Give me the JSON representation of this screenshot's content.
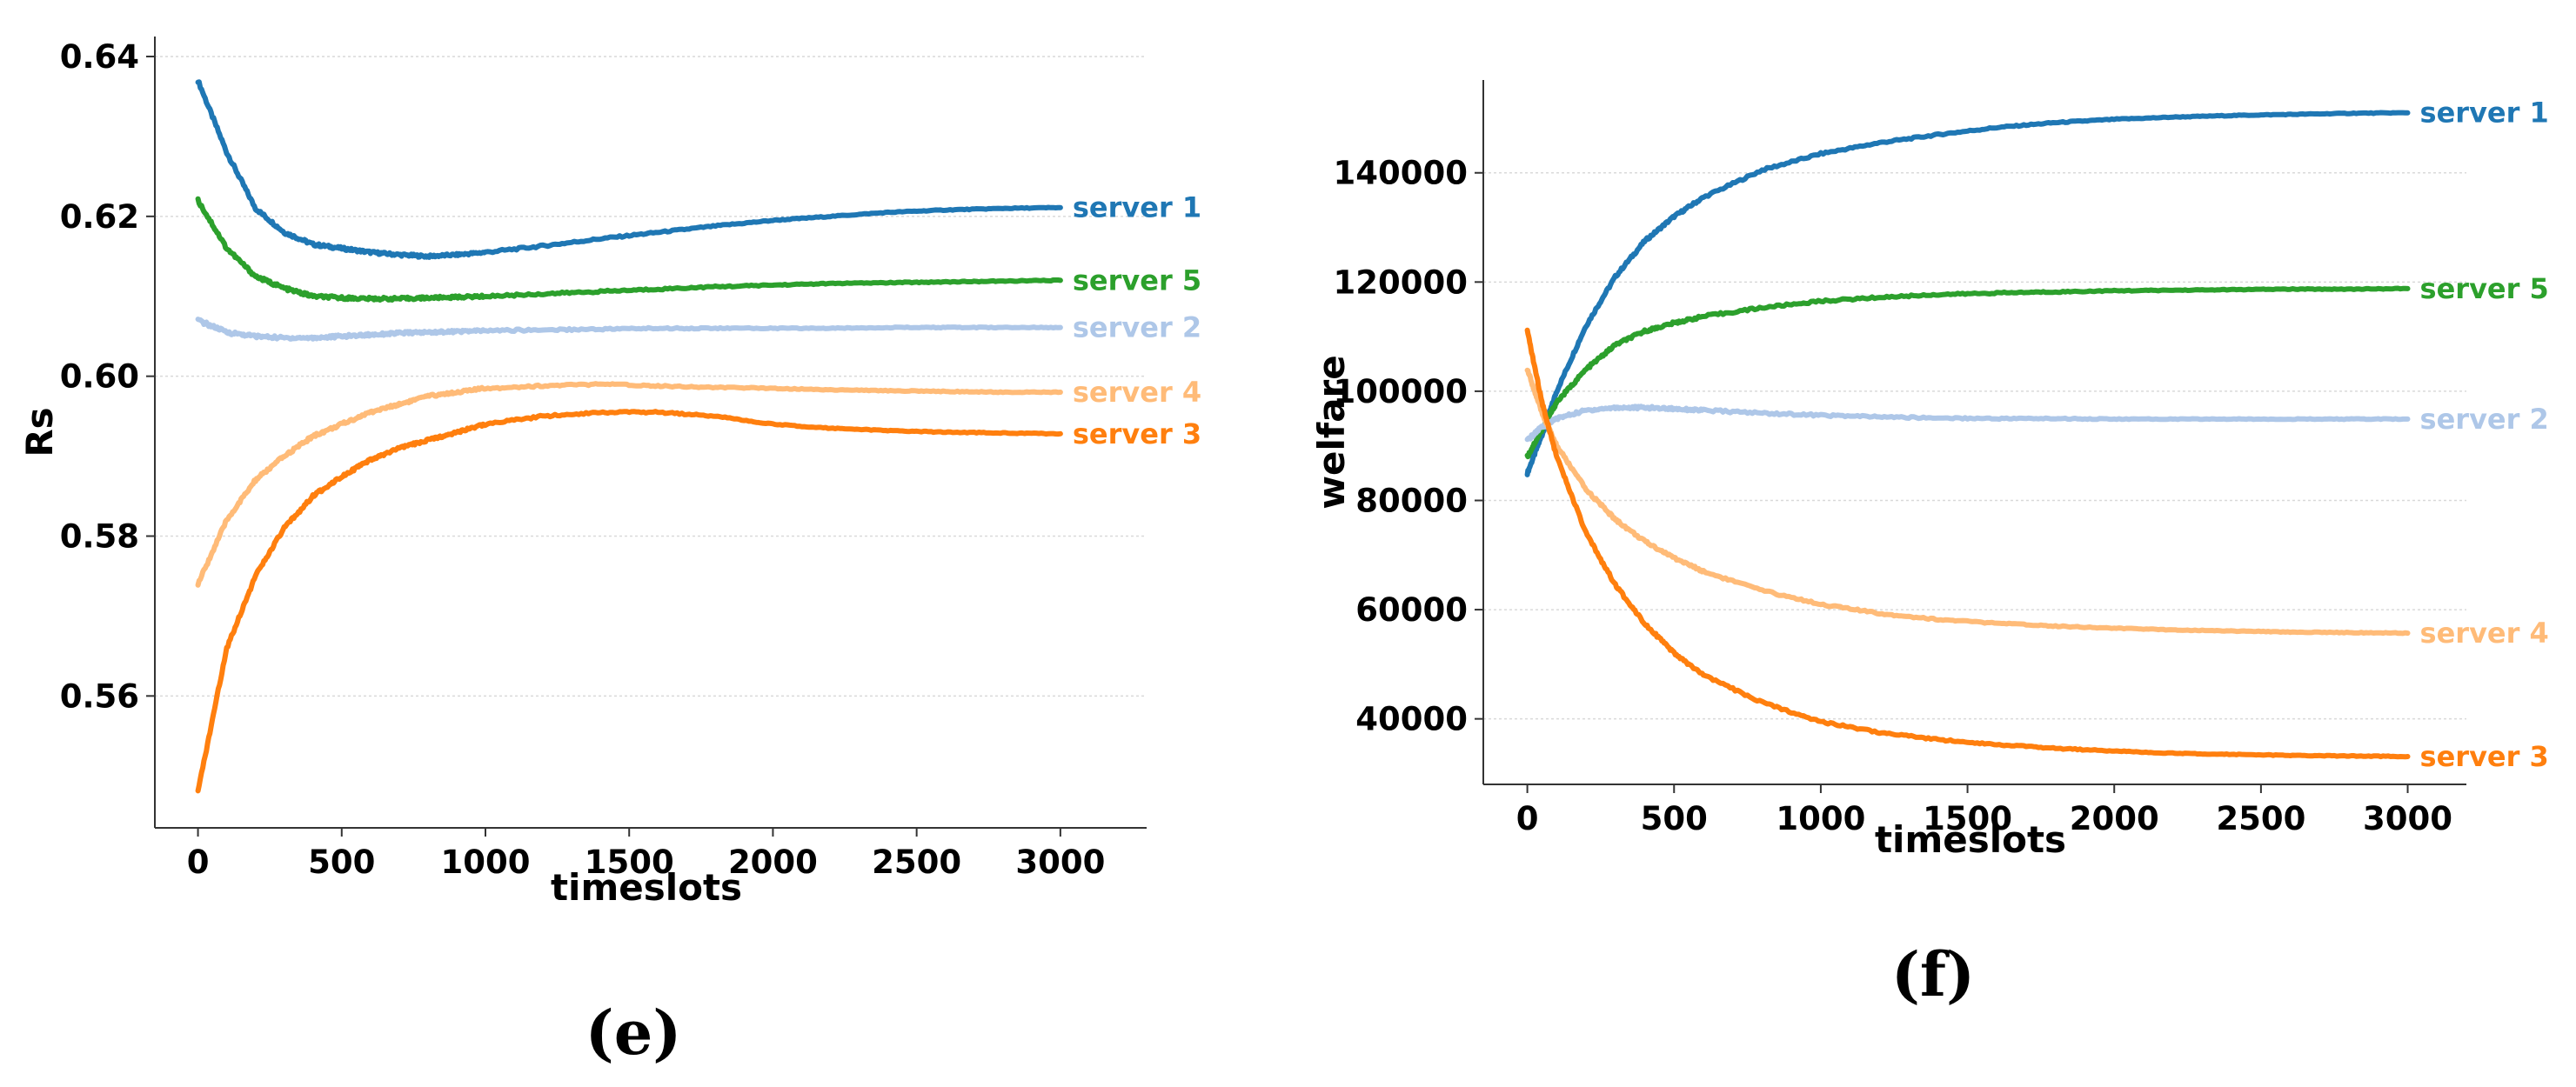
{
  "chart_data": [
    {
      "id": "e",
      "type": "line",
      "caption": "(e)",
      "title": "",
      "xlabel": "timeslots",
      "ylabel": "Rs",
      "xlim": [
        -150,
        3300
      ],
      "ylim": [
        0.5435,
        0.6425
      ],
      "xticks": [
        0,
        500,
        1000,
        1500,
        2000,
        2500,
        3000
      ],
      "xtick_labels": [
        "0",
        "500",
        "1000",
        "1500",
        "2000",
        "2500",
        "3000"
      ],
      "yticks": [
        0.56,
        0.58,
        0.6,
        0.62,
        0.64
      ],
      "ytick_labels": [
        "0.56",
        "0.58",
        "0.60",
        "0.62",
        "0.64"
      ],
      "grid": "horizontal",
      "x": [
        0,
        100,
        200,
        300,
        400,
        500,
        600,
        700,
        800,
        900,
        1000,
        1200,
        1400,
        1600,
        1800,
        2000,
        2200,
        2400,
        2600,
        2800,
        3000
      ],
      "series": [
        {
          "name": "server 1",
          "label": "server 1",
          "color": "#1f77b4",
          "values": [
            0.637,
            0.628,
            0.621,
            0.618,
            0.6165,
            0.616,
            0.6155,
            0.6152,
            0.615,
            0.6152,
            0.6155,
            0.6163,
            0.6172,
            0.618,
            0.6188,
            0.6195,
            0.62,
            0.6205,
            0.6208,
            0.621,
            0.6211
          ]
        },
        {
          "name": "server 5",
          "label": "server 5",
          "color": "#2ca02c",
          "values": [
            0.622,
            0.616,
            0.6125,
            0.611,
            0.61,
            0.6098,
            0.6097,
            0.6097,
            0.6098,
            0.6099,
            0.61,
            0.6103,
            0.6106,
            0.6109,
            0.6112,
            0.6114,
            0.6116,
            0.6117,
            0.6118,
            0.6119,
            0.612
          ]
        },
        {
          "name": "server 2",
          "label": "server 2",
          "color": "#aec7e8",
          "values": [
            0.607,
            0.6055,
            0.605,
            0.6048,
            0.6048,
            0.605,
            0.6052,
            0.6054,
            0.6055,
            0.6056,
            0.6057,
            0.6058,
            0.6059,
            0.606,
            0.606,
            0.606,
            0.606,
            0.6061,
            0.6061,
            0.6061,
            0.6061
          ]
        },
        {
          "name": "server 4",
          "label": "server 4",
          "color": "#ffbb78",
          "values": [
            0.574,
            0.582,
            0.587,
            0.59,
            0.5925,
            0.594,
            0.5955,
            0.5965,
            0.5975,
            0.598,
            0.5985,
            0.5988,
            0.599,
            0.5988,
            0.5986,
            0.5985,
            0.5983,
            0.5982,
            0.5981,
            0.598,
            0.598
          ]
        },
        {
          "name": "server 3",
          "label": "server 3",
          "color": "#ff7f0e",
          "values": [
            0.548,
            0.566,
            0.575,
            0.581,
            0.585,
            0.5875,
            0.5895,
            0.591,
            0.592,
            0.593,
            0.594,
            0.595,
            0.5955,
            0.5955,
            0.595,
            0.594,
            0.5935,
            0.5932,
            0.593,
            0.5929,
            0.5928
          ]
        }
      ]
    },
    {
      "id": "f",
      "type": "line",
      "caption": "(f)",
      "title": "",
      "xlabel": "timeslots",
      "ylabel": "welfare",
      "xlim": [
        -150,
        3200
      ],
      "ylim": [
        28000,
        157000
      ],
      "xticks": [
        0,
        500,
        1000,
        1500,
        2000,
        2500,
        3000
      ],
      "xtick_labels": [
        "0",
        "500",
        "1000",
        "1500",
        "2000",
        "2500",
        "3000"
      ],
      "yticks": [
        40000,
        60000,
        80000,
        100000,
        120000,
        140000
      ],
      "ytick_labels": [
        "40000",
        "60000",
        "80000",
        "100000",
        "120000",
        "140000"
      ],
      "grid": "horizontal",
      "x": [
        0,
        50,
        100,
        200,
        300,
        400,
        500,
        600,
        800,
        1000,
        1200,
        1400,
        1600,
        1800,
        2000,
        2200,
        2400,
        2600,
        2800,
        3000
      ],
      "series": [
        {
          "name": "server 1",
          "label": "server 1",
          "color": "#1f77b4",
          "values": [
            85000,
            92000,
            100000,
            112000,
            121000,
            127500,
            132000,
            135500,
            140500,
            143500,
            145500,
            147000,
            148300,
            149200,
            149800,
            150200,
            150500,
            150700,
            150900,
            151000
          ]
        },
        {
          "name": "server 5",
          "label": "server 5",
          "color": "#2ca02c",
          "values": [
            88000,
            93000,
            98000,
            104000,
            108500,
            111000,
            112500,
            113700,
            115300,
            116500,
            117200,
            117700,
            118000,
            118200,
            118400,
            118500,
            118600,
            118700,
            118700,
            118800
          ]
        },
        {
          "name": "server 2",
          "label": "server 2",
          "color": "#aec7e8",
          "values": [
            91000,
            93500,
            95000,
            96500,
            97000,
            97000,
            96800,
            96500,
            96000,
            95600,
            95300,
            95100,
            95000,
            95000,
            94900,
            94900,
            94900,
            94900,
            94900,
            94900
          ]
        },
        {
          "name": "server 4",
          "label": "server 4",
          "color": "#ffbb78",
          "values": [
            104000,
            96000,
            90000,
            82000,
            76500,
            72500,
            69500,
            67000,
            63500,
            61000,
            59300,
            58200,
            57500,
            57000,
            56600,
            56300,
            56100,
            55900,
            55800,
            55700
          ]
        },
        {
          "name": "server 3",
          "label": "server 3",
          "color": "#ff7f0e",
          "values": [
            111000,
            98000,
            88000,
            74000,
            64500,
            57500,
            52000,
            48000,
            43000,
            39500,
            37500,
            36200,
            35300,
            34600,
            34100,
            33700,
            33500,
            33300,
            33200,
            33100
          ]
        }
      ]
    }
  ]
}
